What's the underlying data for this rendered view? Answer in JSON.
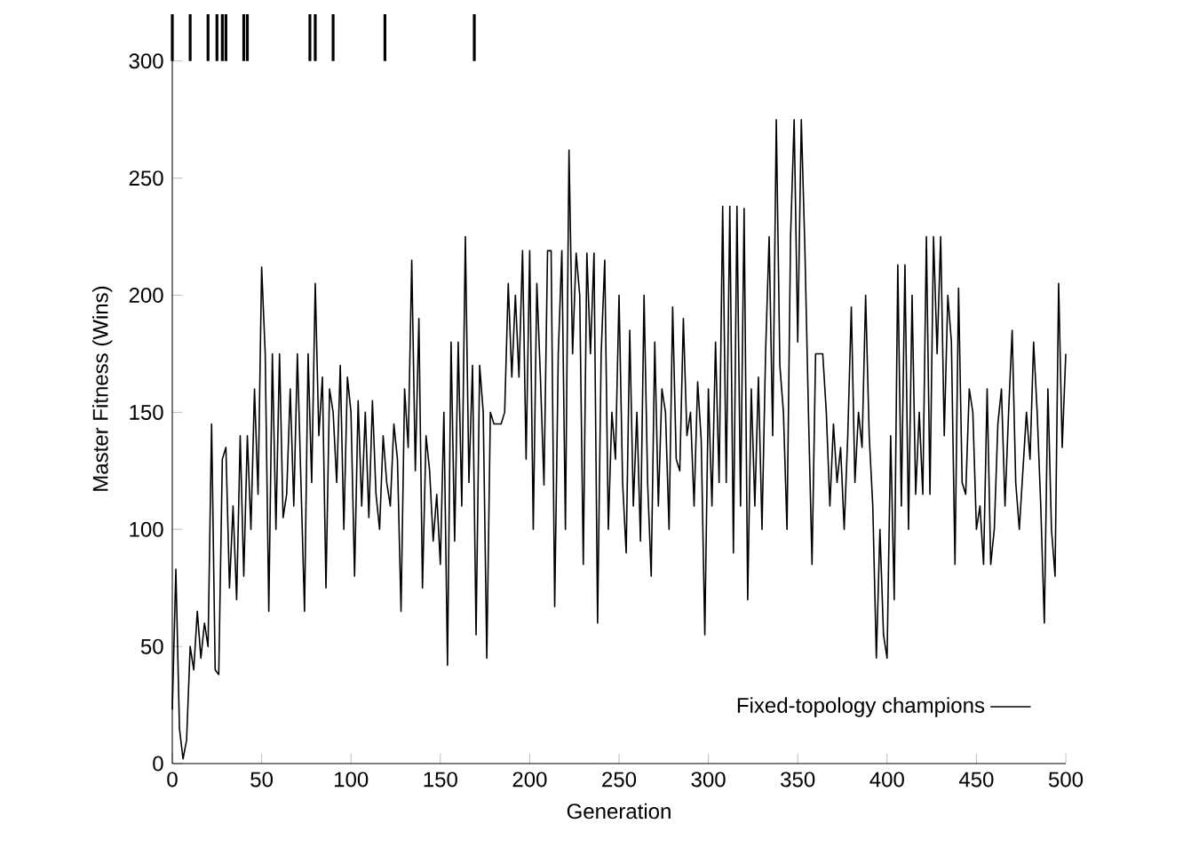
{
  "chart_data": {
    "type": "line",
    "xlabel": "Generation",
    "ylabel": "Master Fitness (Wins)",
    "xlim": [
      0,
      500
    ],
    "xticks": [
      0,
      50,
      100,
      150,
      200,
      250,
      300,
      350,
      400,
      450,
      500
    ],
    "ylim": [
      0,
      320
    ],
    "yticks": [
      0,
      50,
      100,
      150,
      200,
      250,
      300
    ],
    "legend": "bottom right",
    "marker": "none",
    "line_style": "solid",
    "grid": false,
    "series": [
      {
        "name": "Fixed-topology champions",
        "color": "#000000",
        "x": [
          0,
          2,
          4,
          6,
          8,
          10,
          12,
          14,
          16,
          18,
          20,
          22,
          24,
          26,
          28,
          30,
          32,
          34,
          36,
          38,
          40,
          42,
          44,
          46,
          48,
          50,
          52,
          54,
          56,
          58,
          60,
          62,
          64,
          66,
          68,
          70,
          72,
          74,
          76,
          78,
          80,
          82,
          84,
          86,
          88,
          90,
          92,
          94,
          96,
          98,
          100,
          102,
          104,
          106,
          108,
          110,
          112,
          114,
          116,
          118,
          120,
          122,
          124,
          126,
          128,
          130,
          132,
          134,
          136,
          138,
          140,
          142,
          144,
          146,
          148,
          150,
          152,
          154,
          156,
          158,
          160,
          162,
          164,
          166,
          168,
          170,
          172,
          174,
          176,
          178,
          180,
          182,
          184,
          186,
          188,
          190,
          192,
          194,
          196,
          198,
          200,
          202,
          204,
          206,
          208,
          210,
          212,
          214,
          216,
          218,
          220,
          222,
          224,
          226,
          228,
          230,
          232,
          234,
          236,
          238,
          240,
          242,
          244,
          246,
          248,
          250,
          252,
          254,
          256,
          258,
          260,
          262,
          264,
          266,
          268,
          270,
          272,
          274,
          276,
          278,
          280,
          282,
          284,
          286,
          288,
          290,
          292,
          294,
          296,
          298,
          300,
          302,
          304,
          306,
          308,
          310,
          312,
          314,
          316,
          318,
          320,
          322,
          324,
          326,
          328,
          330,
          332,
          334,
          336,
          338,
          340,
          342,
          344,
          346,
          348,
          350,
          352,
          354,
          356,
          358,
          360,
          362,
          364,
          366,
          368,
          370,
          372,
          374,
          376,
          378,
          380,
          382,
          384,
          386,
          388,
          390,
          392,
          394,
          396,
          398,
          400,
          402,
          404,
          406,
          408,
          410,
          412,
          414,
          416,
          418,
          420,
          422,
          424,
          426,
          428,
          430,
          432,
          434,
          436,
          438,
          440,
          442,
          444,
          446,
          448,
          450,
          452,
          454,
          456,
          458,
          460,
          462,
          464,
          466,
          468,
          470,
          472,
          474,
          476,
          478,
          480,
          482,
          484,
          486,
          488,
          490,
          492,
          494,
          496,
          498,
          500
        ],
        "values": [
          23,
          83,
          15,
          2,
          10,
          50,
          40,
          65,
          45,
          60,
          50,
          145,
          40,
          38,
          130,
          135,
          75,
          110,
          70,
          140,
          80,
          140,
          100,
          160,
          115,
          212,
          175,
          65,
          175,
          100,
          175,
          105,
          115,
          160,
          110,
          175,
          120,
          65,
          175,
          120,
          205,
          140,
          165,
          75,
          160,
          150,
          120,
          170,
          100,
          165,
          150,
          80,
          155,
          110,
          150,
          105,
          155,
          115,
          100,
          140,
          120,
          110,
          145,
          130,
          65,
          160,
          135,
          215,
          125,
          190,
          75,
          140,
          125,
          95,
          115,
          85,
          150,
          42,
          180,
          95,
          180,
          110,
          225,
          120,
          170,
          55,
          170,
          150,
          45,
          150,
          145,
          145,
          145,
          150,
          205,
          165,
          200,
          165,
          219,
          130,
          219,
          100,
          205,
          165,
          119,
          219,
          219,
          67,
          175,
          219,
          100,
          262,
          175,
          218,
          200,
          85,
          218,
          175,
          218,
          60,
          175,
          215,
          100,
          150,
          130,
          200,
          120,
          90,
          185,
          110,
          150,
          95,
          200,
          120,
          80,
          180,
          110,
          160,
          150,
          100,
          195,
          130,
          125,
          190,
          140,
          150,
          110,
          163,
          138,
          55,
          160,
          110,
          180,
          120,
          238,
          120,
          238,
          90,
          238,
          110,
          237,
          70,
          160,
          110,
          165,
          100,
          175,
          225,
          140,
          275,
          170,
          150,
          100,
          225,
          275,
          180,
          275,
          220,
          150,
          85,
          175,
          175,
          175,
          150,
          110,
          145,
          120,
          135,
          100,
          140,
          195,
          120,
          150,
          135,
          200,
          140,
          110,
          45,
          100,
          55,
          45,
          140,
          70,
          213,
          110,
          213,
          100,
          200,
          115,
          150,
          115,
          225,
          115,
          225,
          175,
          225,
          140,
          200,
          180,
          85,
          203,
          120,
          115,
          160,
          150,
          100,
          110,
          85,
          160,
          85,
          100,
          145,
          160,
          110,
          150,
          185,
          120,
          100,
          125,
          150,
          130,
          180,
          150,
          110,
          60,
          160,
          100,
          80,
          205,
          135,
          175
        ]
      },
      {
        "type": "bar",
        "color": "#000000",
        "x": [
          0,
          10,
          20,
          25,
          28,
          30,
          40,
          42,
          77,
          80,
          90,
          119,
          169
        ],
        "base": [
          300,
          300,
          300,
          300,
          300,
          300,
          300,
          300,
          300,
          300,
          300,
          300,
          300
        ],
        "values": [
          20,
          20,
          20,
          20,
          20,
          20,
          20,
          20,
          20,
          20,
          20,
          20,
          20
        ]
      }
    ]
  }
}
